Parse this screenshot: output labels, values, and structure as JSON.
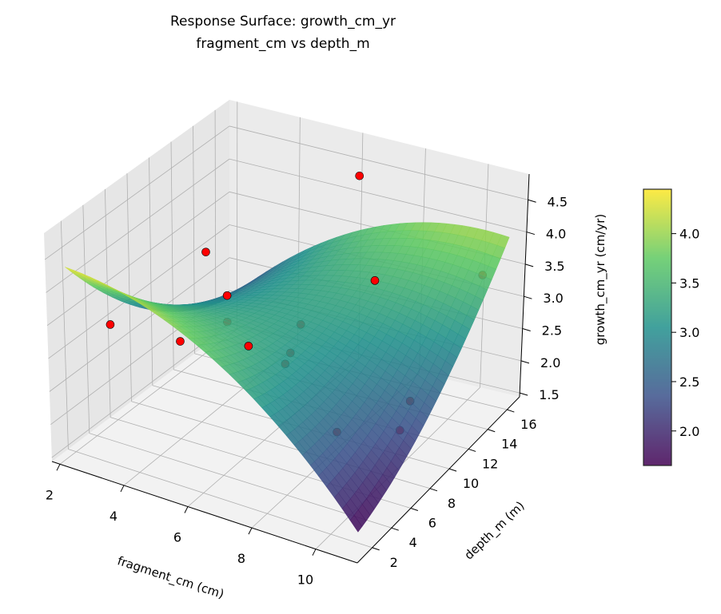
{
  "chart_data": {
    "type": "surface3d",
    "title": [
      "Response Surface: growth_cm_yr",
      "fragment_cm vs depth_m"
    ],
    "xlabel": "fragment_cm (cm)",
    "ylabel": "depth_m (m)",
    "zlabel": "growth_cm_yr (cm/yr)",
    "xlim": [
      1.75,
      11.3
    ],
    "ylim": [
      0.45,
      17.3
    ],
    "zlim": [
      1.44,
      4.9
    ],
    "xticks": [
      "2",
      "4",
      "6",
      "8",
      "10"
    ],
    "yticks": [
      "2",
      "4",
      "6",
      "8",
      "10",
      "12",
      "14",
      "16"
    ],
    "zticks": [
      "1.5",
      "2.0",
      "2.5",
      "3.0",
      "3.5",
      "4.0",
      "4.5"
    ],
    "grid": true,
    "colormap": "viridis",
    "surface": {
      "x_range": [
        2.0,
        11.0
      ],
      "y_range": [
        1.5,
        16.5
      ],
      "model": "quadratic saddle",
      "corner_values": {
        "x_min_y_min": 4.3,
        "x_max_y_min": 1.7,
        "x_max_y_max": 4.0,
        "x_min_y_max": 2.0
      },
      "center_value": 3.2
    },
    "points_color": "#ff0000",
    "points": [
      {
        "x": 7.0,
        "y": 14.0,
        "z": 4.8
      },
      {
        "x": 3.5,
        "y": 10.0,
        "z": 3.7
      },
      {
        "x": 4.5,
        "y": 9.0,
        "z": 3.3
      },
      {
        "x": 5.5,
        "y": 8.0,
        "z": 2.8
      },
      {
        "x": 2.5,
        "y": 4.0,
        "z": 3.2
      },
      {
        "x": 3.0,
        "y": 9.0,
        "z": 2.4
      },
      {
        "x": 4.5,
        "y": 9.0,
        "z": 2.9
      },
      {
        "x": 6.5,
        "y": 10.0,
        "z": 3.0
      },
      {
        "x": 6.5,
        "y": 9.0,
        "z": 2.7
      },
      {
        "x": 6.5,
        "y": 8.5,
        "z": 2.6
      },
      {
        "x": 8.5,
        "y": 11.0,
        "z": 3.8
      },
      {
        "x": 10.5,
        "y": 15.5,
        "z": 3.5
      },
      {
        "x": 8.0,
        "y": 9.0,
        "z": 1.7
      },
      {
        "x": 10.0,
        "y": 10.0,
        "z": 2.3
      },
      {
        "x": 10.0,
        "y": 9.0,
        "z": 2.0
      }
    ],
    "colorbar": {
      "range": [
        1.65,
        4.45
      ],
      "ticks": [
        "2.0",
        "2.5",
        "3.0",
        "3.5",
        "4.0"
      ]
    }
  }
}
